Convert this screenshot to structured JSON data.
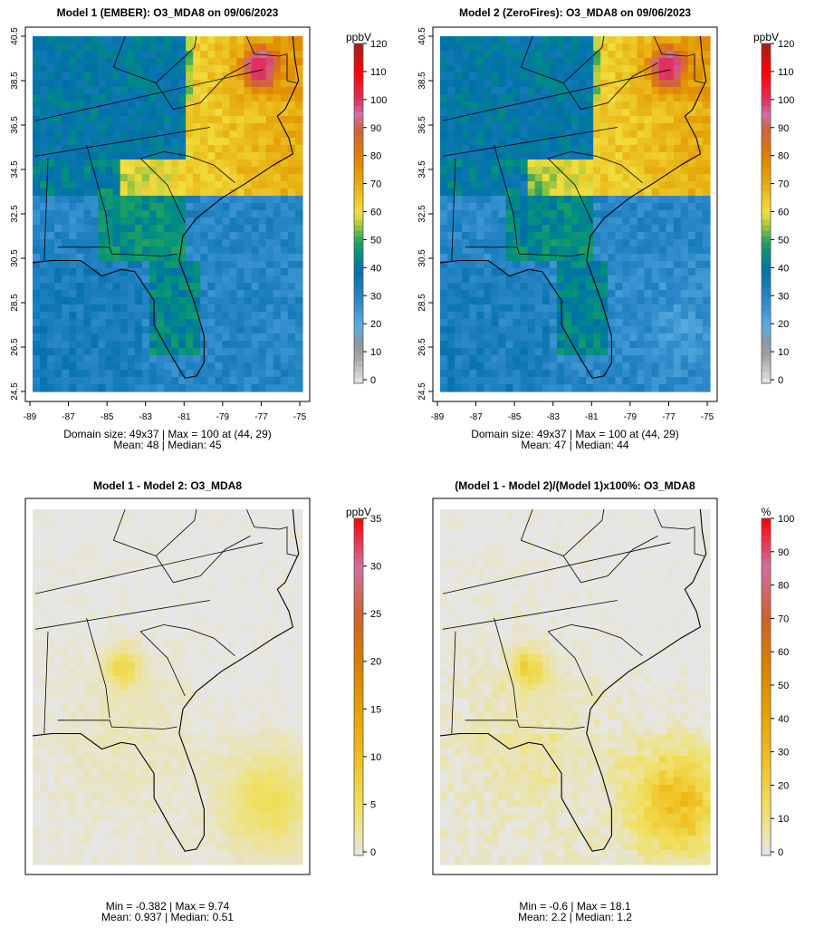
{
  "chart_data": [
    {
      "type": "heatmap",
      "title": "Model 1 (EMBER): O3_MDA8 on 09/06/2023",
      "unit": "ppbV",
      "variant": "conc",
      "xticks": [
        "-89",
        "-87",
        "-85",
        "-83",
        "-81",
        "-79",
        "-77",
        "-75"
      ],
      "yticks": [
        "40.5",
        "38.5",
        "36.5",
        "34.5",
        "32.5",
        "30.5",
        "28.5",
        "26.5",
        "24.5"
      ],
      "xlim": [
        -89,
        -75
      ],
      "ylim": [
        24.5,
        40.5
      ],
      "grid": [
        49,
        37
      ],
      "colorbar": {
        "range": [
          0,
          120
        ],
        "labels": [
          "0",
          "10",
          "20",
          "30",
          "40",
          "50",
          "60",
          "70",
          "80",
          "90",
          "100",
          "110",
          "120"
        ]
      },
      "stats1": "Domain size: 49x37 | Max = 100 at (44, 29)",
      "stats2": "Mean: 48 |  Median: 45"
    },
    {
      "type": "heatmap",
      "title": "Model 2 (ZeroFires): O3_MDA8 on 09/06/2023",
      "unit": "ppbV",
      "variant": "conc2",
      "xticks": [
        "-89",
        "-87",
        "-85",
        "-83",
        "-81",
        "-79",
        "-77",
        "-75"
      ],
      "yticks": [
        "40.5",
        "38.5",
        "36.5",
        "34.5",
        "32.5",
        "30.5",
        "28.5",
        "26.5",
        "24.5"
      ],
      "xlim": [
        -89,
        -75
      ],
      "ylim": [
        24.5,
        40.5
      ],
      "grid": [
        49,
        37
      ],
      "colorbar": {
        "range": [
          0,
          120
        ],
        "labels": [
          "0",
          "10",
          "20",
          "30",
          "40",
          "50",
          "60",
          "70",
          "80",
          "90",
          "100",
          "110",
          "120"
        ]
      },
      "stats1": "Domain size: 49x37 | Max = 100 at (44, 29)",
      "stats2": "Mean: 47 |  Median: 44"
    },
    {
      "type": "heatmap",
      "title": "Model 1 - Model 2: O3_MDA8",
      "unit": "ppbV",
      "variant": "diff",
      "xticks": [],
      "yticks": [],
      "xlim": [
        -89,
        -75
      ],
      "ylim": [
        24.5,
        40.5
      ],
      "grid": [
        49,
        37
      ],
      "colorbar": {
        "range": [
          0,
          35
        ],
        "labels": [
          "0",
          "5",
          "10",
          "15",
          "20",
          "25",
          "30",
          "35"
        ]
      },
      "stats1": "Min = -0.382 | Max = 9.74",
      "stats2": "Mean: 0.937 |  Median: 0.51"
    },
    {
      "type": "heatmap",
      "title": "(Model 1 - Model 2)/(Model 1)x100%: O3_MDA8",
      "unit": "%",
      "variant": "pct",
      "xticks": [],
      "yticks": [],
      "xlim": [
        -89,
        -75
      ],
      "ylim": [
        24.5,
        40.5
      ],
      "grid": [
        49,
        37
      ],
      "colorbar": {
        "range": [
          0,
          100
        ],
        "labels": [
          "0",
          "10",
          "20",
          "30",
          "40",
          "50",
          "60",
          "70",
          "80",
          "90",
          "100"
        ]
      },
      "stats1": "Min = -0.6 | Max = 18.1",
      "stats2": "Mean: 2.2 |  Median: 1.2"
    }
  ]
}
